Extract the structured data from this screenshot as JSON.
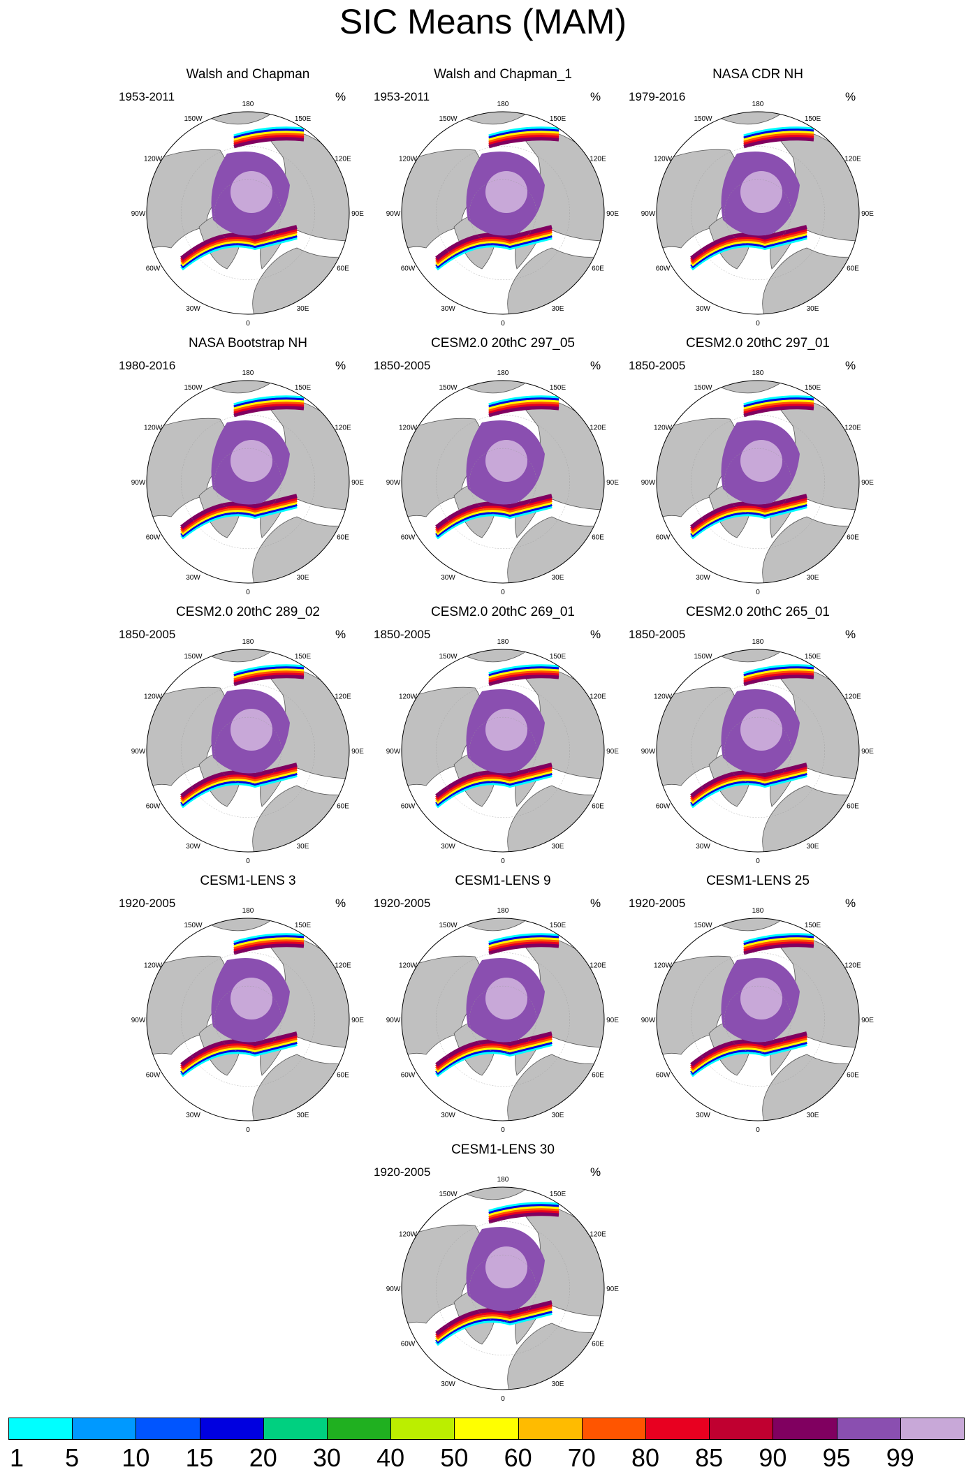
{
  "title": "SIC Means (MAM)",
  "panels": [
    {
      "title": "Walsh and Chapman",
      "period": "1953-2011",
      "units": "%"
    },
    {
      "title": "Walsh and Chapman_1",
      "period": "1953-2011",
      "units": "%"
    },
    {
      "title": "NASA CDR NH",
      "period": "1979-2016",
      "units": "%"
    },
    {
      "title": "NASA Bootstrap NH",
      "period": "1980-2016",
      "units": "%"
    },
    {
      "title": "CESM2.0 20thC 297_05",
      "period": "1850-2005",
      "units": "%"
    },
    {
      "title": "CESM2.0 20thC 297_01",
      "period": "1850-2005",
      "units": "%"
    },
    {
      "title": "CESM2.0 20thC 289_02",
      "period": "1850-2005",
      "units": "%"
    },
    {
      "title": "CESM2.0 20thC 269_01",
      "period": "1850-2005",
      "units": "%"
    },
    {
      "title": "CESM2.0 20thC 265_01",
      "period": "1850-2005",
      "units": "%"
    },
    {
      "title": "CESM1-LENS 3",
      "period": "1920-2005",
      "units": "%"
    },
    {
      "title": "CESM1-LENS 9",
      "period": "1920-2005",
      "units": "%"
    },
    {
      "title": "CESM1-LENS 25",
      "period": "1920-2005",
      "units": "%"
    },
    {
      "title": "CESM1-LENS 30",
      "period": "1920-2005",
      "units": "%"
    }
  ],
  "map_labels": {
    "top": "180",
    "bottom": "0",
    "left": "90W",
    "right": "90E",
    "upper_left_1": "150W",
    "upper_left_2": "120W",
    "lower_left_1": "60W",
    "lower_left_2": "30W",
    "upper_right_1": "150E",
    "upper_right_2": "120E",
    "lower_right_1": "60E",
    "lower_right_2": "30E"
  },
  "colors": {
    "land": "#c0c0c0",
    "ocean": "#ffffff",
    "core_ice_light": "#c8a8d8",
    "core_ice": "#8a4fb0"
  },
  "colorbar": {
    "colors": [
      "#00ffff",
      "#0099ff",
      "#0055ff",
      "#0000e0",
      "#00d080",
      "#20b020",
      "#bbee00",
      "#ffff00",
      "#ffbb00",
      "#ff5500",
      "#e80020",
      "#c00030",
      "#800060",
      "#8a4fb0",
      "#c8a8d8"
    ],
    "labels": [
      "1",
      "5",
      "10",
      "15",
      "20",
      "30",
      "40",
      "50",
      "60",
      "70",
      "80",
      "85",
      "90",
      "95",
      "99"
    ]
  }
}
